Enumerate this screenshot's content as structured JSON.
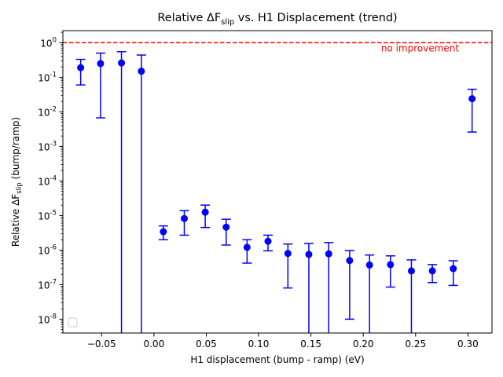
{
  "chart_data": {
    "type": "scatter",
    "title": {
      "prefix": "Relative ΔF",
      "subscript": "slip",
      "suffix": " vs. H1 Displacement (trend)"
    },
    "xlabel": "H1 displacement (bump - ramp) (eV)",
    "ylabel": {
      "prefix": "Relative ΔF",
      "subscript": "slip",
      "suffix": " (bump/ramp)"
    },
    "xlim": [
      -0.087,
      0.323
    ],
    "ylim_log10": [
      -8.4,
      0.35
    ],
    "yscale": "log",
    "x_ticks": [
      {
        "value": -0.05,
        "label": "−0.05"
      },
      {
        "value": 0.0,
        "label": "0.00"
      },
      {
        "value": 0.05,
        "label": "0.05"
      },
      {
        "value": 0.1,
        "label": "0.10"
      },
      {
        "value": 0.15,
        "label": "0.15"
      },
      {
        "value": 0.2,
        "label": "0.20"
      },
      {
        "value": 0.25,
        "label": "0.25"
      },
      {
        "value": 0.3,
        "label": "0.30"
      }
    ],
    "y_ticks": [
      {
        "exp": 0,
        "label": "10^0"
      },
      {
        "exp": -1,
        "label": "10^-1"
      },
      {
        "exp": -2,
        "label": "10^-2"
      },
      {
        "exp": -3,
        "label": "10^-3"
      },
      {
        "exp": -4,
        "label": "10^-4"
      },
      {
        "exp": -5,
        "label": "10^-5"
      },
      {
        "exp": -6,
        "label": "10^-6"
      },
      {
        "exp": -7,
        "label": "10^-7"
      },
      {
        "exp": -8,
        "label": "10^-8"
      }
    ],
    "series": [
      {
        "marker": "circle",
        "color": "#0000ff",
        "points": [
          {
            "x": -0.07,
            "y": 0.19,
            "low": 0.06,
            "high": 0.33
          },
          {
            "x": -0.051,
            "y": 0.25,
            "low": 0.0067,
            "high": 0.5
          },
          {
            "x": -0.031,
            "y": 0.26,
            "low": 1e-12,
            "high": 0.55
          },
          {
            "x": -0.012,
            "y": 0.15,
            "low": 1e-12,
            "high": 0.44
          },
          {
            "x": 0.009,
            "y": 3.4e-06,
            "low": 2e-06,
            "high": 5e-06
          },
          {
            "x": 0.029,
            "y": 8.2e-06,
            "low": 2.7e-06,
            "high": 1.38e-05
          },
          {
            "x": 0.049,
            "y": 1.25e-05,
            "low": 4.5e-06,
            "high": 2e-05
          },
          {
            "x": 0.069,
            "y": 4.6e-06,
            "low": 1.4e-06,
            "high": 7.8e-06
          },
          {
            "x": 0.089,
            "y": 1.2e-06,
            "low": 4.2e-07,
            "high": 2e-06
          },
          {
            "x": 0.109,
            "y": 1.8e-06,
            "low": 9.5e-07,
            "high": 2.7e-06
          },
          {
            "x": 0.128,
            "y": 8e-07,
            "low": 8e-08,
            "high": 1.5e-06
          },
          {
            "x": 0.148,
            "y": 7.5e-07,
            "low": 1e-12,
            "high": 1.55e-06
          },
          {
            "x": 0.167,
            "y": 7.8e-07,
            "low": 1e-12,
            "high": 1.65e-06
          },
          {
            "x": 0.187,
            "y": 5e-07,
            "low": 1e-08,
            "high": 9.7e-07
          },
          {
            "x": 0.206,
            "y": 3.7e-07,
            "low": 1e-12,
            "high": 7.2e-07
          },
          {
            "x": 0.226,
            "y": 3.8e-07,
            "low": 8.5e-08,
            "high": 6.8e-07
          },
          {
            "x": 0.246,
            "y": 2.5e-07,
            "low": 1e-12,
            "high": 5.2e-07
          },
          {
            "x": 0.266,
            "y": 2.5e-07,
            "low": 1.15e-07,
            "high": 3.8e-07
          },
          {
            "x": 0.286,
            "y": 2.9e-07,
            "low": 9.5e-08,
            "high": 4.9e-07
          },
          {
            "x": 0.304,
            "y": 0.024,
            "low": 0.0026,
            "high": 0.045
          }
        ]
      }
    ],
    "reference_line": {
      "y": 1.0,
      "style": "dashed",
      "color": "#ff0000"
    },
    "annotation": {
      "text": "no improvement",
      "color": "#ff0000",
      "x": 0.217
    },
    "legend": {
      "placement": "lower-left",
      "entries": []
    },
    "grid": false
  }
}
